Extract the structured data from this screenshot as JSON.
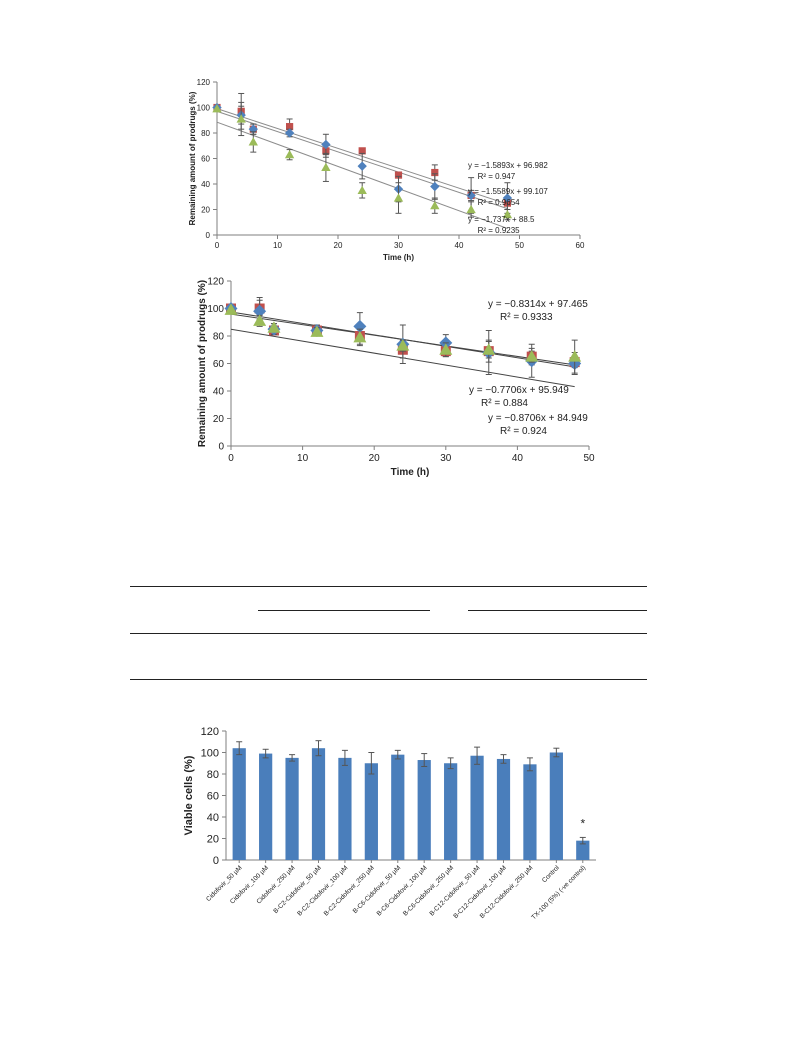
{
  "chart_data": [
    {
      "type": "scatter",
      "xlabel": "Time (h)",
      "ylabel": "Remaining amount of prodrugs (%)",
      "xlim": [
        0,
        60
      ],
      "ylim": [
        0,
        120
      ],
      "xticks": [
        0,
        10,
        20,
        30,
        40,
        50,
        60
      ],
      "yticks": [
        0,
        20,
        40,
        60,
        80,
        100,
        120
      ],
      "x": [
        0,
        4,
        6,
        12,
        18,
        24,
        30,
        36,
        42,
        48
      ],
      "series": [
        {
          "marker": "square",
          "color": "#c0504d",
          "values": [
            100,
            97,
            83,
            85,
            66,
            66,
            47,
            49,
            31,
            25
          ],
          "errors": [
            0,
            14,
            4,
            6,
            5,
            0,
            0,
            6,
            4,
            5
          ]
        },
        {
          "marker": "diamond",
          "color": "#4f81bd",
          "values": [
            100,
            94,
            83,
            80,
            71,
            54,
            36,
            38,
            31,
            29
          ],
          "errors": [
            0,
            7,
            4,
            3,
            8,
            10,
            10,
            10,
            14,
            12
          ]
        },
        {
          "marker": "triangle",
          "color": "#9bbb59",
          "values": [
            99,
            91,
            73,
            63,
            53,
            35,
            29,
            23,
            20,
            16
          ],
          "errors": [
            0,
            13,
            8,
            4,
            11,
            6,
            12,
            6,
            6,
            4
          ]
        }
      ],
      "trendlines": [
        {
          "slope": -1.5893,
          "intercept": 96.982,
          "label": "= −1.5893",
          "r2": "= 0.947"
        },
        {
          "slope": -1.5589,
          "intercept": 99.107,
          "label": "= −1.5589",
          "r2": "= 0.9654"
        },
        {
          "slope": -1.737,
          "intercept": 88.5,
          "label": "= −1.737",
          "r2": "= 0.9235"
        }
      ],
      "equation_labels": [
        {
          "eq": "y = −1.5893x + 96.982",
          "r2": "R² = 0.947"
        },
        {
          "eq": "y = −1.5589x + 99.107",
          "r2": "R² = 0.9654"
        },
        {
          "eq": "y = −1.737x + 88.5",
          "r2": "R² = 0.9235"
        }
      ]
    },
    {
      "type": "scatter",
      "xlabel": "Time (h)",
      "ylabel": "Remaining amount of prodrugs (%)",
      "xlim": [
        0,
        50
      ],
      "ylim": [
        0,
        120
      ],
      "xticks": [
        0,
        10,
        20,
        30,
        40,
        50
      ],
      "yticks": [
        0,
        20,
        40,
        60,
        80,
        100,
        120
      ],
      "x": [
        0,
        4,
        6,
        12,
        18,
        24,
        30,
        36,
        42,
        48
      ],
      "series": [
        {
          "marker": "square",
          "color": "#c0504d",
          "values": [
            100,
            100,
            84,
            84,
            80,
            70,
            69,
            69,
            65,
            61
          ],
          "errors": [
            0,
            8,
            3,
            4,
            6,
            6,
            4,
            8,
            6,
            4
          ]
        },
        {
          "marker": "diamond",
          "color": "#4f81bd",
          "values": [
            100,
            98,
            85,
            84,
            87,
            74,
            75,
            68,
            62,
            60
          ],
          "errors": [
            0,
            8,
            4,
            4,
            10,
            14,
            6,
            16,
            12,
            8
          ]
        },
        {
          "marker": "triangle",
          "color": "#9bbb59",
          "values": [
            99,
            91,
            86,
            83,
            79,
            73,
            70,
            70,
            65,
            65
          ],
          "errors": [
            0,
            4,
            3,
            3,
            6,
            4,
            5,
            6,
            4,
            12
          ]
        }
      ],
      "trendlines": [
        {
          "slope": -0.8314,
          "intercept": 97.465
        },
        {
          "slope": -0.7706,
          "intercept": 95.949
        },
        {
          "slope": -0.8706,
          "intercept": 84.949
        }
      ],
      "equation_labels": [
        {
          "eq": "y = −0.8314x + 97.465",
          "r2": "R² = 0.9333"
        },
        {
          "eq": "y = −0.7706x + 95.949",
          "r2": "R² = 0.884"
        },
        {
          "eq": "y = −0.8706x + 84.949",
          "r2": "R² = 0.924"
        }
      ]
    },
    {
      "type": "bar",
      "ylabel": "Viable cells (%)",
      "ylim": [
        0,
        120
      ],
      "yticks": [
        0,
        20,
        40,
        60,
        80,
        100,
        120
      ],
      "color": "#4a7ebb",
      "categories": [
        "Cidofovir_50 µM",
        "Cidofovir_100 µM",
        "Cidofovir_250 µM",
        "B-C2-Cidofovir_50 µM",
        "B-C2-Cidofovir_100 µM",
        "B-C2-Cidofovir_250 µM",
        "B-C6-Cidofovir_50 µM",
        "B-C6-Cidofovir_100 µM",
        "B-C6-Cidofovir_250 µM",
        "B-C12-Cidofovir_50 µM",
        "B-C12-Cidofovir_100 µM",
        "B-C12-Cidofovir_250 µM",
        "Control",
        "TX-100 (5%) (-ve control)"
      ],
      "values": [
        104,
        99,
        95,
        104,
        95,
        90,
        98,
        93,
        90,
        97,
        94,
        89,
        100,
        18
      ],
      "errors": [
        6,
        4,
        3,
        7,
        7,
        10,
        4,
        6,
        5,
        8,
        4,
        6,
        4,
        3
      ],
      "annotation": "*"
    }
  ]
}
